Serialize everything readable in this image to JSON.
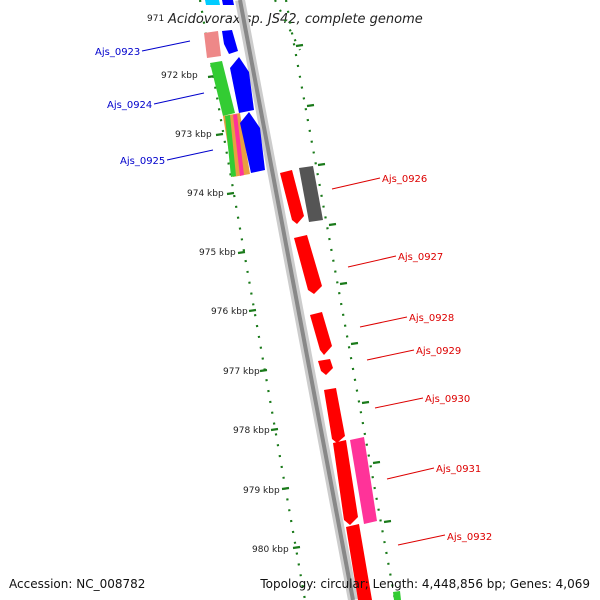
{
  "header": {
    "title": "Acidovorax sp. JS42, complete genome"
  },
  "scale": {
    "first_tick": "971",
    "ticks": [
      "972 kbp",
      "973 kbp",
      "974 kbp",
      "975 kbp",
      "976 kbp",
      "977 kbp",
      "978 kbp",
      "979 kbp",
      "980 kbp"
    ]
  },
  "genes": {
    "left": [
      "Ajs_0923",
      "Ajs_0924",
      "Ajs_0925"
    ],
    "right": [
      "Ajs_0926",
      "Ajs_0927",
      "Ajs_0928",
      "Ajs_0929",
      "Ajs_0930",
      "Ajs_0931",
      "Ajs_0932"
    ]
  },
  "footer": {
    "accession": "Accession: NC_008782",
    "topology": "Topology: circular; Length: 4,448,856 bp; Genes: 4,069"
  },
  "colors": {
    "left_label": "#0000cc",
    "right_label": "#dd0000",
    "backbone": "#888888",
    "ticks": "#1a7a1a",
    "cds_red": "#ff0000",
    "cds_blue": "#0000ff",
    "cds_green": "#33cc33",
    "cds_pink": "#ff3399",
    "cds_grey": "#555555",
    "cds_cyan": "#00ccff",
    "cds_salmon": "#ee8888"
  }
}
